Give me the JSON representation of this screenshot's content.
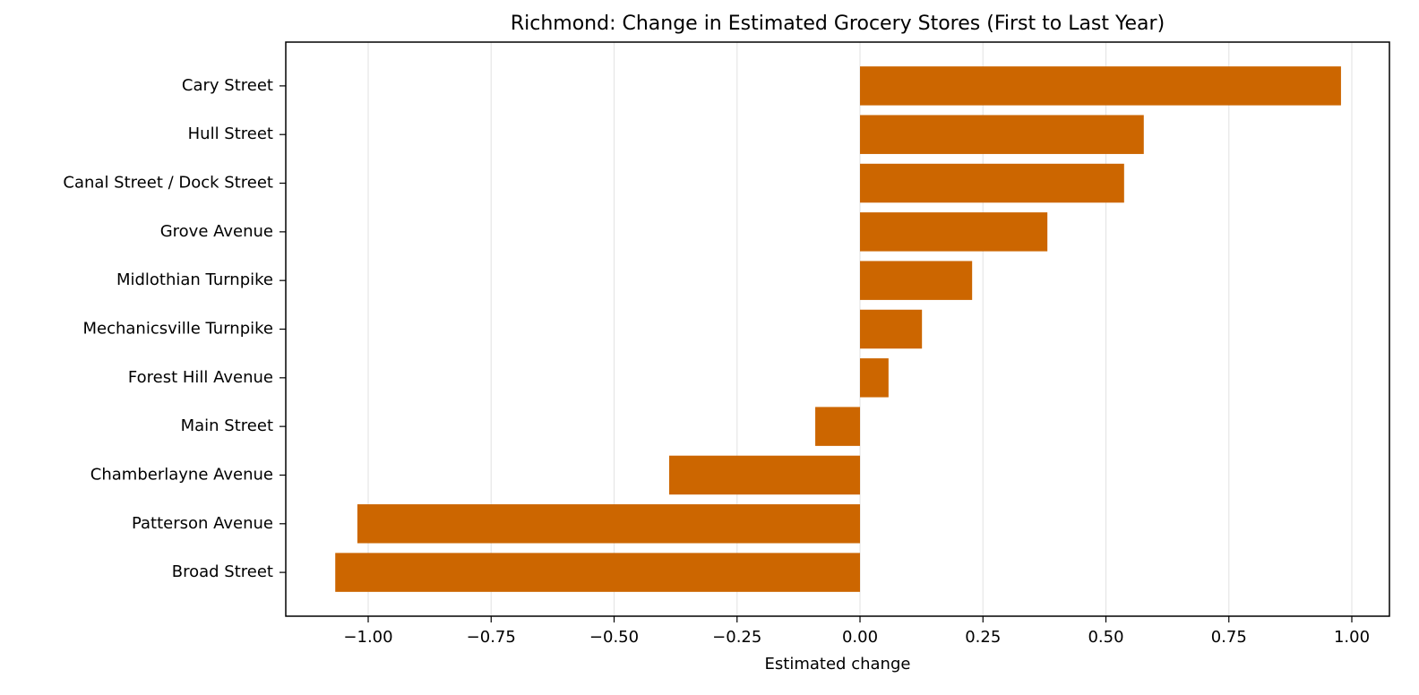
{
  "chart_data": {
    "type": "barh",
    "title": "Richmond: Change in Estimated Grocery Stores (First to Last Year)",
    "xlabel": "Estimated change",
    "categories": [
      "Cary Street",
      "Hull Street",
      "Canal Street / Dock Street",
      "Grove Avenue",
      "Midlothian Turnpike",
      "Mechanicsville Turnpike",
      "Forest Hill Avenue",
      "Main Street",
      "Chamberlayne Avenue",
      "Patterson Avenue",
      "Broad Street"
    ],
    "values": [
      0.978,
      0.577,
      0.537,
      0.381,
      0.228,
      0.126,
      0.058,
      -0.091,
      -0.388,
      -1.022,
      -1.067
    ],
    "color": "#cc6600",
    "xlim": [
      -1.1676,
      1.0765
    ],
    "xticks": [
      {
        "value": -1,
        "label": "−1.00"
      },
      {
        "value": -0.75,
        "label": "−0.75"
      },
      {
        "value": -0.5,
        "label": "−0.50"
      },
      {
        "value": -0.25,
        "label": "−0.25"
      },
      {
        "value": 0,
        "label": "0.00"
      },
      {
        "value": 0.25,
        "label": "0.25"
      },
      {
        "value": 0.5,
        "label": "0.50"
      },
      {
        "value": 0.75,
        "label": "0.75"
      },
      {
        "value": 1,
        "label": "1.00"
      }
    ],
    "grid": true
  }
}
